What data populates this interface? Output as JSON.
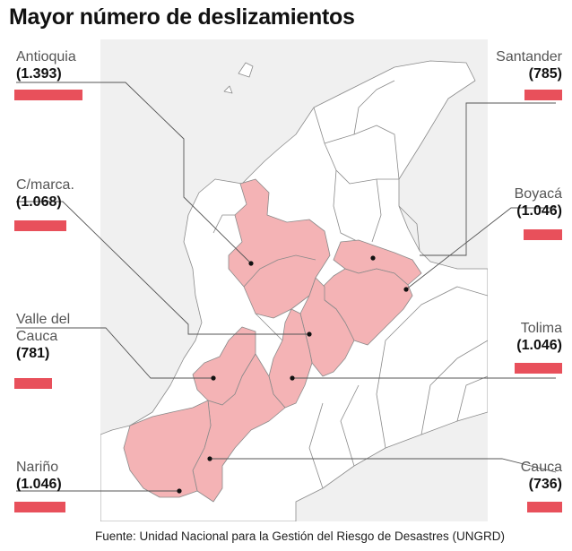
{
  "title": "Mayor número de deslizamientos",
  "source": "Fuente:  Unidad Nacional para la Gestión del Riesgo de Desastres (UNGRD)",
  "colors": {
    "highlight": "#f4b3b5",
    "bar": "#e8505b",
    "sea": "#f0f0f0"
  },
  "regions": [
    {
      "name": "Antioquia",
      "value": "(1.393)",
      "count": 1393
    },
    {
      "name": "C/marca.",
      "value": "(1.068)",
      "count": 1068
    },
    {
      "name": "Valle del Cauca",
      "name_line1": "Valle del",
      "name_line2": "Cauca",
      "value": "(781)",
      "count": 781
    },
    {
      "name": "Nariño",
      "value": "(1.046)",
      "count": 1046
    },
    {
      "name": "Santander",
      "value": "(785)",
      "count": 785
    },
    {
      "name": "Boyacá",
      "value": "(1.046)",
      "count": 1046
    },
    {
      "name": "Tolima",
      "value": "(1.046)",
      "count": 1046
    },
    {
      "name": "Cauca",
      "value": "(736)",
      "count": 736
    }
  ]
}
